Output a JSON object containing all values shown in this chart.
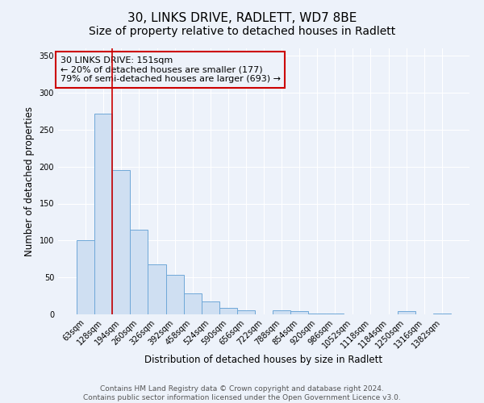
{
  "title": "30, LINKS DRIVE, RADLETT, WD7 8BE",
  "subtitle": "Size of property relative to detached houses in Radlett",
  "xlabel": "Distribution of detached houses by size in Radlett",
  "ylabel": "Number of detached properties",
  "bar_labels": [
    "63sqm",
    "128sqm",
    "194sqm",
    "260sqm",
    "326sqm",
    "392sqm",
    "458sqm",
    "524sqm",
    "590sqm",
    "656sqm",
    "722sqm",
    "788sqm",
    "854sqm",
    "920sqm",
    "986sqm",
    "1052sqm",
    "1118sqm",
    "1184sqm",
    "1250sqm",
    "1316sqm",
    "1382sqm"
  ],
  "bar_values": [
    100,
    272,
    195,
    115,
    68,
    54,
    28,
    17,
    9,
    5,
    0,
    6,
    4,
    1,
    1,
    0,
    0,
    0,
    4,
    0,
    1
  ],
  "bar_color": "#cfdff2",
  "bar_edge_color": "#6fa8d8",
  "annotation_box_text": "30 LINKS DRIVE: 151sqm\n← 20% of detached houses are smaller (177)\n79% of semi-detached houses are larger (693) →",
  "annotation_box_color": "#cc0000",
  "vline_x": 1.5,
  "vline_color": "#cc0000",
  "ylim": [
    0,
    360
  ],
  "yticks": [
    0,
    50,
    100,
    150,
    200,
    250,
    300,
    350
  ],
  "footer_line1": "Contains HM Land Registry data © Crown copyright and database right 2024.",
  "footer_line2": "Contains public sector information licensed under the Open Government Licence v3.0.",
  "background_color": "#edf2fa",
  "title_fontsize": 11,
  "axis_label_fontsize": 8.5,
  "tick_fontsize": 7,
  "annotation_fontsize": 8,
  "footer_fontsize": 6.5
}
